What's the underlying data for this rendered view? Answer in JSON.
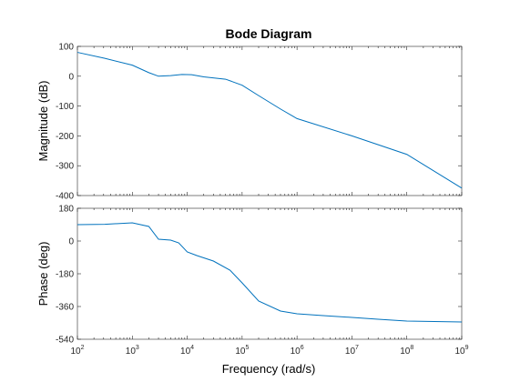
{
  "chart_data": {
    "type": "line",
    "title": "Bode Diagram",
    "xlabel": "Frequency  (rad/s)",
    "x_scale": "log",
    "xlim": [
      100,
      1000000000
    ],
    "x_tick_labels": [
      {
        "base": "10",
        "exp": "2"
      },
      {
        "base": "10",
        "exp": "3"
      },
      {
        "base": "10",
        "exp": "4"
      },
      {
        "base": "10",
        "exp": "5"
      },
      {
        "base": "10",
        "exp": "6"
      },
      {
        "base": "10",
        "exp": "7"
      },
      {
        "base": "10",
        "exp": "8"
      },
      {
        "base": "10",
        "exp": "9"
      }
    ],
    "grid": false,
    "series_color": "#0072BD",
    "panels": [
      {
        "ylabel": "Magnitude (dB)",
        "ylim": [
          -400,
          100
        ],
        "yticks": [
          100,
          0,
          -100,
          -200,
          -300,
          -400
        ],
        "ytick_labels": [
          "100",
          "0",
          "-100",
          "-200",
          "-300",
          "-400"
        ],
        "series": [
          {
            "x": [
              100,
              316,
              1000,
              2000,
              3000,
              5000,
              8000,
              12000,
              20000,
              50000,
              100000,
              200000,
              500000,
              1000000,
              10000000,
              100000000,
              1000000000
            ],
            "y": [
              80,
              60,
              37,
              12,
              0,
              2,
              6,
              5,
              -2,
              -10,
              -30,
              -65,
              -110,
              -142,
              -200,
              -262,
              -375
            ]
          }
        ]
      },
      {
        "ylabel": "Phase (deg)",
        "ylim": [
          -540,
          180
        ],
        "yticks": [
          180,
          0,
          -180,
          -360,
          -540
        ],
        "ytick_labels": [
          "180",
          "0",
          "-180",
          "-360",
          "-540"
        ],
        "series": [
          {
            "x": [
              100,
              316,
              1000,
              2000,
              3000,
              5000,
              7000,
              10000,
              15000,
              30000,
              60000,
              100000,
              200000,
              500000,
              1000000,
              3000000,
              10000000,
              30000000,
              100000000,
              1000000000
            ],
            "y": [
              90,
              92,
              100,
              80,
              10,
              5,
              -10,
              -60,
              -80,
              -110,
              -160,
              -230,
              -330,
              -385,
              -400,
              -410,
              -420,
              -430,
              -440,
              -445
            ]
          }
        ]
      }
    ]
  }
}
